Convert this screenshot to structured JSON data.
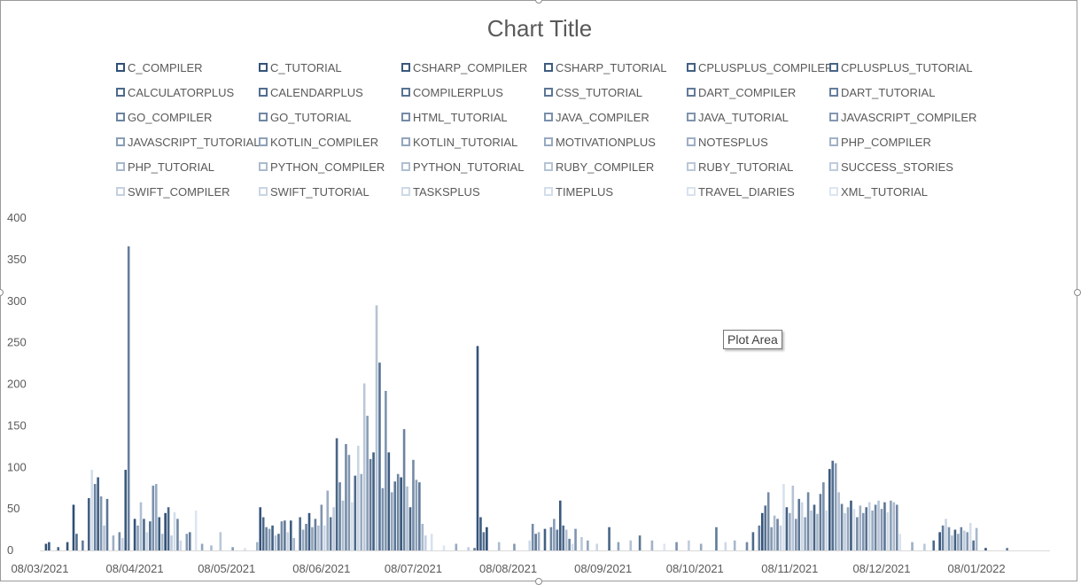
{
  "chart_data": {
    "type": "bar",
    "title": "Chart Title",
    "ylim": [
      0,
      400
    ],
    "yticks": [
      0,
      50,
      100,
      150,
      200,
      250,
      300,
      350,
      400
    ],
    "xlim": [
      "2021-03-08",
      "2022-02-01"
    ],
    "xticks": [
      "08/03/2021",
      "08/04/2021",
      "08/05/2021",
      "08/06/2021",
      "08/07/2021",
      "08/08/2021",
      "08/09/2021",
      "08/10/2021",
      "08/11/2021",
      "08/12/2021",
      "08/01/2022"
    ],
    "legend_position": "top",
    "grid": false,
    "colors": {
      "dark": "#2f4f75",
      "light": "#dde6f2"
    },
    "series_names": [
      "C_COMPILER",
      "C_TUTORIAL",
      "CSHARP_COMPILER",
      "CSHARP_TUTORIAL",
      "CPLUSPLUS_COMPILER",
      "CPLUSPLUS_TUTORIAL",
      "CALCULATORPLUS",
      "CALENDARPLUS",
      "COMPILERPLUS",
      "CSS_TUTORIAL",
      "DART_COMPILER",
      "DART_TUTORIAL",
      "GO_COMPILER",
      "GO_TUTORIAL",
      "HTML_TUTORIAL",
      "JAVA_COMPILER",
      "JAVA_TUTORIAL",
      "JAVASCRIPT_COMPILER",
      "JAVASCRIPT_TUTORIAL",
      "KOTLIN_COMPILER",
      "KOTLIN_TUTORIAL",
      "MOTIVATIONPLUS",
      "NOTESPLUS",
      "PHP_COMPILER",
      "PHP_TUTORIAL",
      "PYTHON_COMPILER",
      "PYTHON_TUTORIAL",
      "RUBY_COMPILER",
      "RUBY_TUTORIAL",
      "SUCCESS_STORIES",
      "SWIFT_COMPILER",
      "SWIFT_TUTORIAL",
      "TASKSPLUS",
      "TIMEPLUS",
      "TRAVEL_DIARIES",
      "XML_TUTORIAL"
    ],
    "points": [
      {
        "x": "2021-03-10",
        "y": 8,
        "s": 0
      },
      {
        "x": "2021-03-11",
        "y": 10,
        "s": 2
      },
      {
        "x": "2021-03-14",
        "y": 4,
        "s": 5
      },
      {
        "x": "2021-03-17",
        "y": 10,
        "s": 1
      },
      {
        "x": "2021-03-19",
        "y": 55,
        "s": 0
      },
      {
        "x": "2021-03-20",
        "y": 20,
        "s": 7
      },
      {
        "x": "2021-03-22",
        "y": 12,
        "s": 10
      },
      {
        "x": "2021-03-24",
        "y": 63,
        "s": 4
      },
      {
        "x": "2021-03-25",
        "y": 97,
        "s": 33
      },
      {
        "x": "2021-03-26",
        "y": 80,
        "s": 12
      },
      {
        "x": "2021-03-27",
        "y": 88,
        "s": 3
      },
      {
        "x": "2021-03-28",
        "y": 65,
        "s": 16
      },
      {
        "x": "2021-03-29",
        "y": 30,
        "s": 27
      },
      {
        "x": "2021-03-30",
        "y": 62,
        "s": 9
      },
      {
        "x": "2021-04-01",
        "y": 18,
        "s": 22
      },
      {
        "x": "2021-04-03",
        "y": 22,
        "s": 14
      },
      {
        "x": "2021-04-04",
        "y": 15,
        "s": 30
      },
      {
        "x": "2021-04-05",
        "y": 97,
        "s": 2
      },
      {
        "x": "2021-04-06",
        "y": 366,
        "s": 11
      },
      {
        "x": "2021-04-08",
        "y": 38,
        "s": 1
      },
      {
        "x": "2021-04-09",
        "y": 30,
        "s": 19
      },
      {
        "x": "2021-04-10",
        "y": 58,
        "s": 26
      },
      {
        "x": "2021-04-11",
        "y": 38,
        "s": 6
      },
      {
        "x": "2021-04-12",
        "y": 22,
        "s": 31
      },
      {
        "x": "2021-04-13",
        "y": 35,
        "s": 8
      },
      {
        "x": "2021-04-14",
        "y": 78,
        "s": 15
      },
      {
        "x": "2021-04-15",
        "y": 80,
        "s": 21
      },
      {
        "x": "2021-04-16",
        "y": 40,
        "s": 3
      },
      {
        "x": "2021-04-17",
        "y": 20,
        "s": 24
      },
      {
        "x": "2021-04-18",
        "y": 45,
        "s": 0
      },
      {
        "x": "2021-04-19",
        "y": 52,
        "s": 5
      },
      {
        "x": "2021-04-20",
        "y": 18,
        "s": 29
      },
      {
        "x": "2021-04-21",
        "y": 46,
        "s": 33
      },
      {
        "x": "2021-04-22",
        "y": 38,
        "s": 13
      },
      {
        "x": "2021-04-23",
        "y": 12,
        "s": 32
      },
      {
        "x": "2021-04-25",
        "y": 20,
        "s": 17
      },
      {
        "x": "2021-04-26",
        "y": 22,
        "s": 10
      },
      {
        "x": "2021-04-28",
        "y": 48,
        "s": 35
      },
      {
        "x": "2021-04-30",
        "y": 8,
        "s": 20
      },
      {
        "x": "2021-05-03",
        "y": 6,
        "s": 25
      },
      {
        "x": "2021-05-06",
        "y": 22,
        "s": 28
      },
      {
        "x": "2021-05-10",
        "y": 4,
        "s": 18
      },
      {
        "x": "2021-05-14",
        "y": 3,
        "s": 34
      },
      {
        "x": "2021-05-18",
        "y": 10,
        "s": 23
      },
      {
        "x": "2021-05-19",
        "y": 52,
        "s": 1
      },
      {
        "x": "2021-05-20",
        "y": 40,
        "s": 6
      },
      {
        "x": "2021-05-21",
        "y": 28,
        "s": 12
      },
      {
        "x": "2021-05-22",
        "y": 26,
        "s": 18
      },
      {
        "x": "2021-05-23",
        "y": 30,
        "s": 4
      },
      {
        "x": "2021-05-24",
        "y": 18,
        "s": 27
      },
      {
        "x": "2021-05-25",
        "y": 20,
        "s": 8
      },
      {
        "x": "2021-05-26",
        "y": 35,
        "s": 14
      },
      {
        "x": "2021-05-27",
        "y": 36,
        "s": 10
      },
      {
        "x": "2021-05-28",
        "y": 22,
        "s": 30
      },
      {
        "x": "2021-05-29",
        "y": 36,
        "s": 3
      },
      {
        "x": "2021-05-30",
        "y": 15,
        "s": 24
      },
      {
        "x": "2021-06-01",
        "y": 40,
        "s": 7
      },
      {
        "x": "2021-06-02",
        "y": 25,
        "s": 20
      },
      {
        "x": "2021-06-03",
        "y": 32,
        "s": 13
      },
      {
        "x": "2021-06-04",
        "y": 45,
        "s": 2
      },
      {
        "x": "2021-06-05",
        "y": 28,
        "s": 19
      },
      {
        "x": "2021-06-06",
        "y": 38,
        "s": 11
      },
      {
        "x": "2021-06-07",
        "y": 30,
        "s": 26
      },
      {
        "x": "2021-06-08",
        "y": 55,
        "s": 16
      },
      {
        "x": "2021-06-09",
        "y": 30,
        "s": 32
      },
      {
        "x": "2021-06-10",
        "y": 72,
        "s": 22
      },
      {
        "x": "2021-06-11",
        "y": 40,
        "s": 9
      },
      {
        "x": "2021-06-12",
        "y": 52,
        "s": 29
      },
      {
        "x": "2021-06-13",
        "y": 135,
        "s": 5
      },
      {
        "x": "2021-06-14",
        "y": 82,
        "s": 12
      },
      {
        "x": "2021-06-15",
        "y": 60,
        "s": 25
      },
      {
        "x": "2021-06-16",
        "y": 128,
        "s": 14
      },
      {
        "x": "2021-06-17",
        "y": 115,
        "s": 17
      },
      {
        "x": "2021-06-18",
        "y": 58,
        "s": 33
      },
      {
        "x": "2021-06-19",
        "y": 90,
        "s": 6
      },
      {
        "x": "2021-06-20",
        "y": 126,
        "s": 31
      },
      {
        "x": "2021-06-21",
        "y": 92,
        "s": 21
      },
      {
        "x": "2021-06-22",
        "y": 201,
        "s": 28
      },
      {
        "x": "2021-06-23",
        "y": 162,
        "s": 18
      },
      {
        "x": "2021-06-24",
        "y": 110,
        "s": 10
      },
      {
        "x": "2021-06-25",
        "y": 118,
        "s": 4
      },
      {
        "x": "2021-06-26",
        "y": 295,
        "s": 27
      },
      {
        "x": "2021-06-27",
        "y": 226,
        "s": 8
      },
      {
        "x": "2021-06-28",
        "y": 75,
        "s": 15
      },
      {
        "x": "2021-06-29",
        "y": 192,
        "s": 16
      },
      {
        "x": "2021-06-30",
        "y": 118,
        "s": 3
      },
      {
        "x": "2021-07-01",
        "y": 70,
        "s": 20
      },
      {
        "x": "2021-07-02",
        "y": 83,
        "s": 9
      },
      {
        "x": "2021-07-03",
        "y": 92,
        "s": 13
      },
      {
        "x": "2021-07-04",
        "y": 88,
        "s": 1
      },
      {
        "x": "2021-07-05",
        "y": 146,
        "s": 12
      },
      {
        "x": "2021-07-06",
        "y": 77,
        "s": 26
      },
      {
        "x": "2021-07-07",
        "y": 52,
        "s": 5
      },
      {
        "x": "2021-07-08",
        "y": 109,
        "s": 14
      },
      {
        "x": "2021-07-09",
        "y": 85,
        "s": 19
      },
      {
        "x": "2021-07-10",
        "y": 82,
        "s": 10
      },
      {
        "x": "2021-07-11",
        "y": 32,
        "s": 24
      },
      {
        "x": "2021-07-12",
        "y": 18,
        "s": 30
      },
      {
        "x": "2021-07-14",
        "y": 20,
        "s": 34
      },
      {
        "x": "2021-07-18",
        "y": 6,
        "s": 35
      },
      {
        "x": "2021-07-22",
        "y": 8,
        "s": 21
      },
      {
        "x": "2021-07-26",
        "y": 4,
        "s": 29
      },
      {
        "x": "2021-07-28",
        "y": 3,
        "s": 11
      },
      {
        "x": "2021-07-29",
        "y": 246,
        "s": 1
      },
      {
        "x": "2021-07-30",
        "y": 40,
        "s": 3
      },
      {
        "x": "2021-07-31",
        "y": 22,
        "s": 8
      },
      {
        "x": "2021-08-01",
        "y": 28,
        "s": 0
      },
      {
        "x": "2021-08-05",
        "y": 10,
        "s": 25
      },
      {
        "x": "2021-08-10",
        "y": 8,
        "s": 17
      },
      {
        "x": "2021-08-15",
        "y": 12,
        "s": 32
      },
      {
        "x": "2021-08-16",
        "y": 32,
        "s": 14
      },
      {
        "x": "2021-08-17",
        "y": 20,
        "s": 9
      },
      {
        "x": "2021-08-18",
        "y": 22,
        "s": 22
      },
      {
        "x": "2021-08-20",
        "y": 26,
        "s": 4
      },
      {
        "x": "2021-08-22",
        "y": 28,
        "s": 13
      },
      {
        "x": "2021-08-23",
        "y": 38,
        "s": 18
      },
      {
        "x": "2021-08-24",
        "y": 25,
        "s": 10
      },
      {
        "x": "2021-08-25",
        "y": 60,
        "s": 2
      },
      {
        "x": "2021-08-26",
        "y": 30,
        "s": 7
      },
      {
        "x": "2021-08-27",
        "y": 25,
        "s": 26
      },
      {
        "x": "2021-08-28",
        "y": 14,
        "s": 12
      },
      {
        "x": "2021-08-29",
        "y": 8,
        "s": 33
      },
      {
        "x": "2021-08-30",
        "y": 26,
        "s": 16
      },
      {
        "x": "2021-09-01",
        "y": 16,
        "s": 28
      },
      {
        "x": "2021-09-03",
        "y": 12,
        "s": 20
      },
      {
        "x": "2021-09-06",
        "y": 8,
        "s": 31
      },
      {
        "x": "2021-09-10",
        "y": 28,
        "s": 5
      },
      {
        "x": "2021-09-13",
        "y": 10,
        "s": 19
      },
      {
        "x": "2021-09-17",
        "y": 12,
        "s": 27
      },
      {
        "x": "2021-09-20",
        "y": 18,
        "s": 9
      },
      {
        "x": "2021-09-24",
        "y": 12,
        "s": 23
      },
      {
        "x": "2021-09-28",
        "y": 8,
        "s": 35
      },
      {
        "x": "2021-10-02",
        "y": 10,
        "s": 15
      },
      {
        "x": "2021-10-06",
        "y": 12,
        "s": 29
      },
      {
        "x": "2021-10-10",
        "y": 8,
        "s": 21
      },
      {
        "x": "2021-10-15",
        "y": 28,
        "s": 10
      },
      {
        "x": "2021-10-18",
        "y": 10,
        "s": 32
      },
      {
        "x": "2021-10-21",
        "y": 12,
        "s": 24
      },
      {
        "x": "2021-10-25",
        "y": 10,
        "s": 13
      },
      {
        "x": "2021-10-27",
        "y": 22,
        "s": 6
      },
      {
        "x": "2021-10-29",
        "y": 30,
        "s": 11
      },
      {
        "x": "2021-10-30",
        "y": 45,
        "s": 1
      },
      {
        "x": "2021-10-31",
        "y": 54,
        "s": 8
      },
      {
        "x": "2021-11-01",
        "y": 70,
        "s": 14
      },
      {
        "x": "2021-11-02",
        "y": 28,
        "s": 17
      },
      {
        "x": "2021-11-03",
        "y": 42,
        "s": 25
      },
      {
        "x": "2021-11-04",
        "y": 38,
        "s": 12
      },
      {
        "x": "2021-11-05",
        "y": 30,
        "s": 30
      },
      {
        "x": "2021-11-06",
        "y": 80,
        "s": 34
      },
      {
        "x": "2021-11-07",
        "y": 52,
        "s": 4
      },
      {
        "x": "2021-11-08",
        "y": 45,
        "s": 22
      },
      {
        "x": "2021-11-09",
        "y": 78,
        "s": 27
      },
      {
        "x": "2021-11-10",
        "y": 38,
        "s": 16
      },
      {
        "x": "2021-11-11",
        "y": 62,
        "s": 9
      },
      {
        "x": "2021-11-12",
        "y": 58,
        "s": 31
      },
      {
        "x": "2021-11-13",
        "y": 40,
        "s": 19
      },
      {
        "x": "2021-11-14",
        "y": 70,
        "s": 13
      },
      {
        "x": "2021-11-15",
        "y": 48,
        "s": 28
      },
      {
        "x": "2021-11-16",
        "y": 55,
        "s": 5
      },
      {
        "x": "2021-11-17",
        "y": 44,
        "s": 24
      },
      {
        "x": "2021-11-18",
        "y": 68,
        "s": 10
      },
      {
        "x": "2021-11-19",
        "y": 82,
        "s": 15
      },
      {
        "x": "2021-11-20",
        "y": 48,
        "s": 32
      },
      {
        "x": "2021-11-21",
        "y": 98,
        "s": 2
      },
      {
        "x": "2021-11-22",
        "y": 108,
        "s": 7
      },
      {
        "x": "2021-11-23",
        "y": 105,
        "s": 18
      },
      {
        "x": "2021-11-24",
        "y": 70,
        "s": 26
      },
      {
        "x": "2021-11-25",
        "y": 56,
        "s": 11
      },
      {
        "x": "2021-11-26",
        "y": 45,
        "s": 29
      },
      {
        "x": "2021-11-27",
        "y": 52,
        "s": 20
      },
      {
        "x": "2021-11-28",
        "y": 60,
        "s": 3
      },
      {
        "x": "2021-11-29",
        "y": 50,
        "s": 33
      },
      {
        "x": "2021-11-30",
        "y": 40,
        "s": 14
      },
      {
        "x": "2021-12-01",
        "y": 54,
        "s": 23
      },
      {
        "x": "2021-12-02",
        "y": 45,
        "s": 16
      },
      {
        "x": "2021-12-03",
        "y": 52,
        "s": 8
      },
      {
        "x": "2021-12-04",
        "y": 58,
        "s": 30
      },
      {
        "x": "2021-12-05",
        "y": 48,
        "s": 21
      },
      {
        "x": "2021-12-06",
        "y": 55,
        "s": 12
      },
      {
        "x": "2021-12-07",
        "y": 60,
        "s": 27
      },
      {
        "x": "2021-12-08",
        "y": 50,
        "s": 17
      },
      {
        "x": "2021-12-09",
        "y": 58,
        "s": 9
      },
      {
        "x": "2021-12-10",
        "y": 46,
        "s": 32
      },
      {
        "x": "2021-12-11",
        "y": 60,
        "s": 19
      },
      {
        "x": "2021-12-12",
        "y": 58,
        "s": 25
      },
      {
        "x": "2021-12-13",
        "y": 55,
        "s": 13
      },
      {
        "x": "2021-12-14",
        "y": 20,
        "s": 34
      },
      {
        "x": "2021-12-18",
        "y": 10,
        "s": 22
      },
      {
        "x": "2021-12-22",
        "y": 8,
        "s": 28
      },
      {
        "x": "2021-12-25",
        "y": 12,
        "s": 6
      },
      {
        "x": "2021-12-27",
        "y": 22,
        "s": 1
      },
      {
        "x": "2021-12-28",
        "y": 30,
        "s": 10
      },
      {
        "x": "2021-12-29",
        "y": 38,
        "s": 31
      },
      {
        "x": "2021-12-30",
        "y": 28,
        "s": 15
      },
      {
        "x": "2021-12-31",
        "y": 18,
        "s": 26
      },
      {
        "x": "2022-01-01",
        "y": 25,
        "s": 4
      },
      {
        "x": "2022-01-02",
        "y": 20,
        "s": 20
      },
      {
        "x": "2022-01-03",
        "y": 28,
        "s": 12
      },
      {
        "x": "2022-01-04",
        "y": 24,
        "s": 29
      },
      {
        "x": "2022-01-05",
        "y": 22,
        "s": 17
      },
      {
        "x": "2022-01-06",
        "y": 33,
        "s": 33
      },
      {
        "x": "2022-01-07",
        "y": 12,
        "s": 8
      },
      {
        "x": "2022-01-08",
        "y": 27,
        "s": 24
      },
      {
        "x": "2022-01-11",
        "y": 3,
        "s": 1
      },
      {
        "x": "2022-01-18",
        "y": 3,
        "s": 10
      }
    ]
  },
  "ui": {
    "tooltip_text": "Plot Area"
  }
}
